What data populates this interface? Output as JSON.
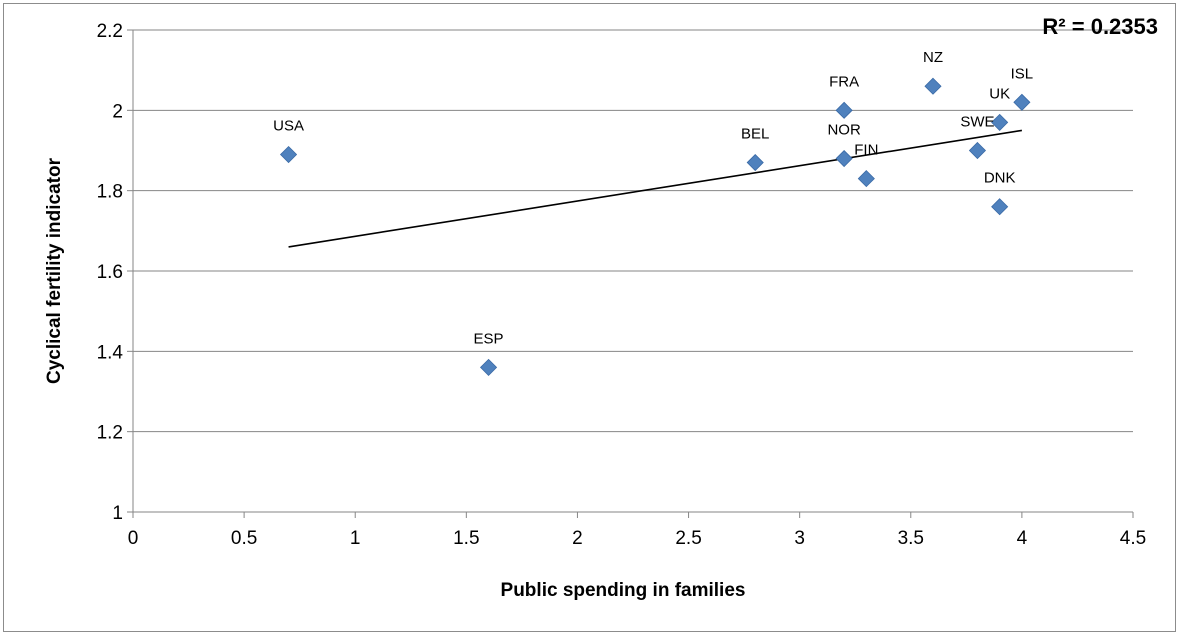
{
  "chart_data": {
    "type": "scatter",
    "title": "",
    "xlabel": "Public spending in families",
    "ylabel": "Cyclical fertility indicator",
    "xlim": [
      0,
      4.5
    ],
    "ylim": [
      1,
      2.2
    ],
    "x_ticks": [
      "0",
      "0.5",
      "1",
      "1.5",
      "2",
      "2.5",
      "3",
      "3.5",
      "4",
      "4.5"
    ],
    "y_ticks": [
      "1",
      "1.2",
      "1.4",
      "1.6",
      "1.8",
      "2",
      "2.2"
    ],
    "grid": "horizontal",
    "marker_color": "#4f81bd",
    "points": [
      {
        "label": "USA",
        "x": 0.7,
        "y": 1.89
      },
      {
        "label": "ESP",
        "x": 1.6,
        "y": 1.36
      },
      {
        "label": "BEL",
        "x": 2.8,
        "y": 1.87
      },
      {
        "label": "FRA",
        "x": 3.2,
        "y": 2.0
      },
      {
        "label": "NOR",
        "x": 3.2,
        "y": 1.88
      },
      {
        "label": "FIN",
        "x": 3.3,
        "y": 1.83
      },
      {
        "label": "NZ",
        "x": 3.6,
        "y": 2.06
      },
      {
        "label": "SWE",
        "x": 3.8,
        "y": 1.9
      },
      {
        "label": "UK",
        "x": 3.9,
        "y": 1.97
      },
      {
        "label": "DNK",
        "x": 3.9,
        "y": 1.76
      },
      {
        "label": "ISL",
        "x": 4.0,
        "y": 2.02
      }
    ],
    "trendline": {
      "type": "linear",
      "x_start": 0.7,
      "y_start": 1.66,
      "x_end": 4.0,
      "y_end": 1.95,
      "color": "#000000"
    },
    "annotation": "R² = 0.2353"
  }
}
